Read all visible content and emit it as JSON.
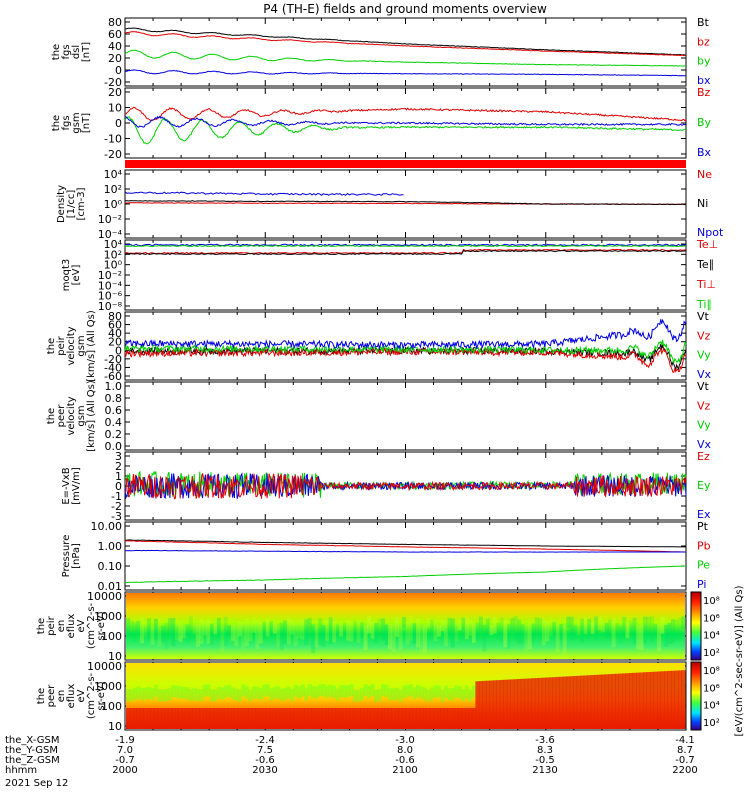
{
  "title": "P4 (TH-E) fields and ground moments overview",
  "colors": {
    "black": "#000000",
    "red": "#e00000",
    "green": "#00d000",
    "blue": "#0000e0"
  },
  "panels": [
    {
      "id": "fgs-dsl",
      "ylabel": [
        "the",
        "fgs",
        "dsl",
        "[nT]"
      ],
      "ticks": [
        "80",
        "60",
        "40",
        "20",
        "0",
        "-20"
      ],
      "ylim": [
        -20,
        85
      ],
      "legend": [
        {
          "text": "Bt",
          "color": "black"
        },
        {
          "text": "bz",
          "color": "red"
        },
        {
          "text": "by",
          "color": "green"
        },
        {
          "text": "bx",
          "color": "blue"
        }
      ]
    },
    {
      "id": "fgs-gsm",
      "ylabel": [
        "the",
        "fgs",
        "gsm",
        "[nT]"
      ],
      "ticks": [
        "20",
        "10",
        "0",
        "-10",
        "-20"
      ],
      "ylim": [
        -25,
        25
      ],
      "legend": [
        {
          "text": "Bz",
          "color": "red"
        },
        {
          "text": "By",
          "color": "green"
        },
        {
          "text": "Bx",
          "color": "blue"
        }
      ]
    },
    {
      "id": "density",
      "ylabel": [
        "Density",
        "[1/cc]",
        "[cm-3]"
      ],
      "ticks": [
        "10⁴",
        "10²",
        "10⁰",
        "10⁻²",
        "10⁻⁴"
      ],
      "legend": [
        {
          "text": "Ne",
          "color": "red"
        },
        {
          "text": "Ni",
          "color": "black"
        },
        {
          "text": "Npot",
          "color": "blue"
        }
      ]
    },
    {
      "id": "temp",
      "ylabel": [
        "moqt3",
        "[eV]"
      ],
      "ticks": [
        "10⁴",
        "10²",
        "10⁰",
        "10⁻²",
        "10⁻⁴",
        "10⁻⁶",
        "10⁻⁸"
      ],
      "legend": [
        {
          "text": "Te⊥",
          "color": "red"
        },
        {
          "text": "Te∥",
          "color": "black"
        },
        {
          "text": "Ti⊥",
          "color": "red"
        },
        {
          "text": "Ti∥",
          "color": "green"
        }
      ]
    },
    {
      "id": "peir-vel",
      "ylabel": [
        "the",
        "peir",
        "velocity",
        "gsm",
        "[km/s] (All Qs)"
      ],
      "ticks": [
        "80",
        "60",
        "40",
        "20",
        "0",
        "-20",
        "-40",
        "-60"
      ],
      "ylim": [
        -60,
        80
      ],
      "legend": [
        {
          "text": "Vt",
          "color": "black"
        },
        {
          "text": "Vz",
          "color": "red"
        },
        {
          "text": "Vy",
          "color": "green"
        },
        {
          "text": "Vx",
          "color": "blue"
        }
      ]
    },
    {
      "id": "peer-vel",
      "ylabel": [
        "the",
        "peer",
        "velocity",
        "gsm",
        "[km/s] (All Qs)"
      ],
      "ticks": [
        "1.0",
        "0.8",
        "0.6",
        "0.4",
        "0.2",
        "0.0"
      ],
      "legend": [
        {
          "text": "Vt",
          "color": "black"
        },
        {
          "text": "Vz",
          "color": "red"
        },
        {
          "text": "Vy",
          "color": "green"
        },
        {
          "text": "Vx",
          "color": "blue"
        }
      ]
    },
    {
      "id": "efield",
      "ylabel": [
        "E=-VxB",
        "[mV/m]"
      ],
      "ticks": [
        "3",
        "2",
        "1",
        "0",
        "-1",
        "-2",
        "-3"
      ],
      "ylim": [
        -3,
        3
      ],
      "legend": [
        {
          "text": "Ez",
          "color": "red"
        },
        {
          "text": "Ey",
          "color": "green"
        },
        {
          "text": "Ex",
          "color": "blue"
        }
      ]
    },
    {
      "id": "pressure",
      "ylabel": [
        "Pressure",
        "[nPa]"
      ],
      "ticks": [
        "10.00",
        "1.00",
        "0.10",
        "0.01"
      ],
      "legend": [
        {
          "text": "Pt",
          "color": "black"
        },
        {
          "text": "Pb",
          "color": "red"
        },
        {
          "text": "Pe",
          "color": "green"
        },
        {
          "text": "Pi",
          "color": "blue"
        }
      ]
    },
    {
      "id": "peir-spec",
      "ylabel": [
        "the",
        "peir",
        "en",
        "eflux",
        "eV",
        "(cm^2-s-",
        "sr-eV)"
      ],
      "ticks": [
        "10000",
        "1000",
        "100",
        "10"
      ]
    },
    {
      "id": "peer-spec",
      "ylabel": [
        "the",
        "peer",
        "en",
        "eflux",
        "eV",
        "(cm^2-s-",
        "sr-eV)"
      ],
      "ticks": [
        "10000",
        "1000",
        "100",
        "10"
      ]
    }
  ],
  "colorbar": {
    "ticks": [
      "10⁸",
      "10⁶",
      "10⁴",
      "10²"
    ],
    "label": "[eV/(cm^2-sec-sr-eV)] (All Qs)"
  },
  "xaxis": {
    "rows": [
      {
        "name": "the_X-GSM",
        "values": [
          "-1.9",
          "-2.4",
          "-3.0",
          "-3.6",
          "-4.1"
        ]
      },
      {
        "name": "the_Y-GSM",
        "values": [
          "7.0",
          "7.5",
          "8.0",
          "8.3",
          "8.7"
        ]
      },
      {
        "name": "the_Z-GSM",
        "values": [
          "-0.7",
          "-0.6",
          "-0.6",
          "-0.5",
          "-0.7"
        ]
      },
      {
        "name": "hhmm",
        "values": [
          "2000",
          "2030",
          "2100",
          "2130",
          "2200"
        ]
      }
    ],
    "date": "2021 Sep 12"
  },
  "chart_data": [
    {
      "type": "line",
      "title": "P4 (TH-E) fields and ground moments overview",
      "ylabel": "the fgs dsl [nT]",
      "ylim": [
        -20,
        85
      ],
      "x": [
        "2000",
        "2030",
        "2100",
        "2130",
        "2200"
      ],
      "series": [
        {
          "name": "Bt",
          "values": [
            68,
            57,
            45,
            36,
            28
          ]
        },
        {
          "name": "bz",
          "values": [
            62,
            52,
            42,
            34,
            27
          ]
        },
        {
          "name": "by",
          "values": [
            30,
            22,
            17,
            13,
            11
          ]
        },
        {
          "name": "bx",
          "values": [
            2,
            0,
            -1,
            -2,
            -4
          ]
        }
      ]
    },
    {
      "type": "line",
      "ylabel": "the fgs gsm [nT]",
      "ylim": [
        -25,
        25
      ],
      "x": [
        "2000",
        "2030",
        "2100",
        "2130",
        "2200"
      ],
      "series": [
        {
          "name": "Bz",
          "values": [
            6,
            7,
            10,
            8,
            2
          ]
        },
        {
          "name": "By",
          "values": [
            -6,
            -4,
            -3,
            -3,
            -5
          ]
        },
        {
          "name": "Bx",
          "values": [
            1,
            0,
            0,
            -1,
            -1
          ]
        }
      ]
    },
    {
      "type": "line",
      "ylabel": "Density [1/cc] [cm-3]",
      "x": [
        "2000",
        "2030",
        "2100",
        "2130",
        "2200"
      ],
      "series": [
        {
          "name": "Ne",
          "values": [
            1.5,
            1.3,
            1.2,
            1.0,
            0.9
          ]
        },
        {
          "name": "Ni",
          "values": [
            3,
            2.5,
            2.2,
            1.0,
            0.9
          ]
        },
        {
          "name": "Npot",
          "values": [
            50,
            30,
            25,
            null,
            null
          ]
        }
      ]
    },
    {
      "type": "line",
      "ylabel": "the peir velocity gsm [km/s] (All Qs)",
      "ylim": [
        -60,
        80
      ],
      "x": [
        "2000",
        "2030",
        "2100",
        "2130",
        "2200"
      ],
      "series": [
        {
          "name": "Vt",
          "values": [
            15,
            14,
            12,
            14,
            50
          ]
        },
        {
          "name": "Vz",
          "values": [
            5,
            4,
            3,
            2,
            0
          ]
        },
        {
          "name": "Vy",
          "values": [
            -5,
            -4,
            -2,
            -3,
            -20
          ]
        },
        {
          "name": "Vx",
          "values": [
            0,
            0,
            0,
            0,
            -10
          ]
        }
      ]
    },
    {
      "type": "line",
      "ylabel": "E=-VxB [mV/m]",
      "ylim": [
        -3,
        3
      ],
      "x": [
        "2000",
        "2030",
        "2100",
        "2130",
        "2200"
      ],
      "series": [
        {
          "name": "Ez",
          "values": [
            0,
            0,
            0,
            0,
            0
          ]
        },
        {
          "name": "Ey",
          "values": [
            0.2,
            0.1,
            0,
            0.1,
            0.3
          ]
        },
        {
          "name": "Ex",
          "values": [
            0,
            0,
            0,
            0,
            0
          ]
        }
      ]
    },
    {
      "type": "line",
      "ylabel": "Pressure [nPa]",
      "x": [
        "2000",
        "2030",
        "2100",
        "2130",
        "2200"
      ],
      "series": [
        {
          "name": "Pt",
          "values": [
            2.0,
            1.5,
            1.2,
            1.0,
            0.9
          ]
        },
        {
          "name": "Pb",
          "values": [
            1.8,
            1.2,
            0.9,
            0.7,
            0.5
          ]
        },
        {
          "name": "Pe",
          "values": [
            0.015,
            0.02,
            0.03,
            0.05,
            0.1
          ]
        },
        {
          "name": "Pi",
          "values": [
            0.6,
            0.55,
            0.5,
            0.5,
            0.5
          ]
        }
      ]
    },
    {
      "type": "heatmap",
      "ylabel": "the peir en eflux eV (cm^2-s- sr-eV)",
      "x": [
        "2000",
        "2030",
        "2100",
        "2130",
        "2200"
      ]
    },
    {
      "type": "heatmap",
      "ylabel": "the peer en eflux eV (cm^2-s- sr-eV)",
      "x": [
        "2000",
        "2030",
        "2100",
        "2130",
        "2200"
      ]
    }
  ]
}
